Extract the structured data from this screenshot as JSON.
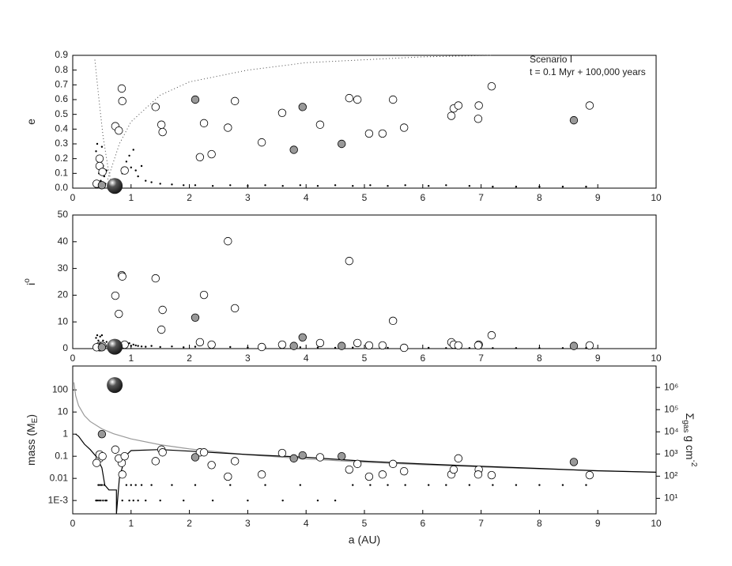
{
  "chart_data": [
    {
      "type": "scatter",
      "ylabel": [
        {
          "text": "e"
        }
      ],
      "annotations": [
        "Scenario I",
        "t = 0.1 Myr + 100,000 years"
      ],
      "xlim": [
        0,
        10
      ],
      "xticks": [
        0,
        1,
        2,
        3,
        4,
        5,
        6,
        7,
        8,
        9,
        10
      ],
      "ylim": [
        0,
        0.9
      ],
      "yticks": [
        {
          "value": 0,
          "label": "0.0"
        },
        0.1,
        0.2,
        0.3,
        0.4,
        0.5,
        0.6,
        0.7,
        0.8,
        0.9
      ],
      "series": [
        {
          "type": "line",
          "style": "dotted",
          "color": "#444444",
          "x": [
            0.38,
            0.45,
            0.52,
            0.6,
            0.68
          ],
          "values": [
            0.87,
            0.6,
            0.35,
            0.15,
            0
          ]
        },
        {
          "type": "line",
          "style": "dotted",
          "color": "#444444",
          "x": [
            0.6,
            0.8,
            1,
            1.5,
            2,
            3,
            4,
            5,
            6,
            7.2
          ],
          "values": [
            0.06,
            0.3,
            0.45,
            0.63,
            0.72,
            0.8,
            0.85,
            0.87,
            0.89,
            0.9
          ]
        },
        {
          "marker": "dot",
          "color": "#000000",
          "x": [
            0.4,
            0.42,
            0.44,
            0.45,
            0.47,
            0.48,
            0.5,
            0.52,
            0.54,
            0.56,
            0.58,
            0.85,
            0.92,
            0.97,
            1.0,
            1.04,
            1.08,
            1.12,
            1.18,
            1.25,
            1.35,
            1.5,
            1.7,
            1.9,
            2.1,
            2.4,
            2.7,
            3.0,
            3.3,
            3.6,
            3.9,
            4.2,
            4.5,
            4.8,
            5.1,
            5.4,
            5.7,
            6.1,
            6.4,
            6.8,
            7.2,
            7.6,
            8.0,
            8.4,
            8.8
          ],
          "values": [
            0.25,
            0.3,
            0.18,
            0.1,
            0.22,
            0.05,
            0.28,
            0.15,
            0.08,
            0.03,
            0.12,
            0.1,
            0.18,
            0.22,
            0.14,
            0.26,
            0.12,
            0.08,
            0.15,
            0.05,
            0.04,
            0.03,
            0.025,
            0.02,
            0.02,
            0.015,
            0.02,
            0.015,
            0.02,
            0.015,
            0.02,
            0.015,
            0.02,
            0.015,
            0.02,
            0.015,
            0.02,
            0.015,
            0.02,
            0.015,
            0.01,
            0.01,
            0.01,
            0.01,
            0.01
          ]
        },
        {
          "marker": "circle",
          "color": "#ffffff",
          "x": [
            0.84,
            0.85,
            0.73,
            0.79,
            0.89,
            1.42,
            1.52,
            1.54,
            2.18,
            2.25,
            2.38,
            2.66,
            2.78,
            3.24,
            3.59,
            4.24,
            4.74,
            4.88,
            5.08,
            5.31,
            5.49,
            5.68,
            6.49,
            6.53,
            6.61,
            6.96,
            6.95,
            7.18,
            8.86,
            0.46,
            0.46,
            0.51,
            0.41
          ],
          "values": [
            0.675,
            0.59,
            0.42,
            0.39,
            0.12,
            0.55,
            0.43,
            0.38,
            0.21,
            0.44,
            0.23,
            0.41,
            0.59,
            0.31,
            0.51,
            0.43,
            0.61,
            0.6,
            0.37,
            0.37,
            0.6,
            0.41,
            0.49,
            0.54,
            0.56,
            0.56,
            0.47,
            0.69,
            0.56,
            0.2,
            0.15,
            0.11,
            0.03
          ]
        },
        {
          "marker": "circle",
          "color": "#999999",
          "x": [
            2.1,
            3.94,
            3.79,
            4.61,
            8.59,
            0.5
          ],
          "values": [
            0.6,
            0.55,
            0.26,
            0.3,
            0.46,
            0.02
          ]
        },
        {
          "marker": "sphere",
          "color": "#555555",
          "x": [
            0.72
          ],
          "values": [
            0.015
          ]
        }
      ]
    },
    {
      "type": "scatter",
      "ylabel": [
        {
          "text": "i"
        },
        {
          "text": "o",
          "shift": "super"
        }
      ],
      "xlim": [
        0,
        10
      ],
      "xticks": [
        0,
        1,
        2,
        3,
        4,
        5,
        6,
        7,
        8,
        9,
        10
      ],
      "ylim": [
        0,
        50
      ],
      "yticks": [
        0,
        10,
        20,
        30,
        40,
        50
      ],
      "series": [
        {
          "marker": "dot",
          "color": "#000000",
          "x": [
            0.4,
            0.42,
            0.44,
            0.45,
            0.47,
            0.48,
            0.5,
            0.52,
            0.54,
            0.56,
            0.58,
            0.85,
            0.92,
            0.97,
            1.0,
            1.04,
            1.08,
            1.12,
            1.18,
            1.25,
            1.35,
            1.5,
            1.7,
            1.9,
            2.1,
            2.4,
            2.7,
            3.0,
            3.3,
            3.6,
            3.9,
            4.2,
            4.5,
            4.8,
            5.1,
            5.4,
            5.7,
            6.1,
            6.4,
            6.8,
            7.2,
            7.6,
            8.0,
            8.4,
            8.8
          ],
          "values": [
            4,
            5,
            3,
            2,
            4.5,
            1,
            5,
            3,
            2,
            1,
            2.5,
            1,
            1.5,
            2,
            1,
            1.5,
            1.2,
            1,
            0.8,
            0.7,
            1,
            0.6,
            0.8,
            0.5,
            0.7,
            0.5,
            0.6,
            0.4,
            0.5,
            0.3,
            0.5,
            0.4,
            0.3,
            0.4,
            0.3,
            0.3,
            0.2,
            0.3,
            0.2,
            0.2,
            0.2,
            0.2,
            0.2,
            0.2,
            0.2
          ]
        },
        {
          "marker": "circle",
          "color": "#ffffff",
          "x": [
            0.84,
            0.85,
            0.73,
            0.79,
            0.89,
            1.42,
            1.52,
            1.54,
            2.18,
            2.25,
            2.38,
            2.66,
            2.78,
            3.24,
            3.59,
            4.24,
            4.74,
            4.88,
            5.08,
            5.31,
            5.49,
            5.68,
            6.49,
            6.53,
            6.61,
            6.96,
            6.95,
            7.18,
            8.86,
            0.46,
            0.46,
            0.51,
            0.41
          ],
          "values": [
            27.5,
            27,
            19.8,
            13,
            1.5,
            26.3,
            7.1,
            14.5,
            2.4,
            20.1,
            1.5,
            40.2,
            15.1,
            0.6,
            1.5,
            2.1,
            32.8,
            2.1,
            1.2,
            1.2,
            10.4,
            0.3,
            2.4,
            1.5,
            1.2,
            1.5,
            1.2,
            5,
            1.2,
            1,
            0.5,
            1,
            0.5
          ]
        },
        {
          "marker": "circle",
          "color": "#999999",
          "x": [
            2.1,
            3.94,
            3.79,
            4.61,
            8.59,
            0.5
          ],
          "values": [
            11.6,
            4.2,
            1.0,
            1.0,
            1.0,
            0.5
          ]
        },
        {
          "marker": "sphere",
          "color": "#555555",
          "x": [
            0.72
          ],
          "values": [
            0.7
          ]
        }
      ]
    },
    {
      "type": "scatter",
      "xlabel": "a (AU)",
      "ylabel": [
        {
          "text": "mass (M"
        },
        {
          "text": "E",
          "shift": "sub"
        },
        {
          "text": ")"
        }
      ],
      "y2label": [
        {
          "text": "Σ"
        },
        {
          "text": "gas",
          "shift": "sub"
        },
        {
          "text": " g cm"
        },
        {
          "text": "-2",
          "shift": "super"
        }
      ],
      "xlim": [
        0,
        10
      ],
      "xticks": [
        0,
        1,
        2,
        3,
        4,
        5,
        6,
        7,
        8,
        9,
        10
      ],
      "ylog": true,
      "ylim": [
        0.00025,
        1200
      ],
      "yticks": [
        {
          "value": 0.001,
          "label": "1E-3"
        },
        0.01,
        0.1,
        1,
        10,
        100
      ],
      "y2log": true,
      "y2lim": [
        2,
        9300000
      ],
      "y2ticks": [
        {
          "value": 10,
          "label": "10¹"
        },
        {
          "value": 100,
          "label": "10²"
        },
        {
          "value": 1000,
          "label": "10³"
        },
        {
          "value": 10000,
          "label": "10⁴"
        },
        {
          "value": 100000,
          "label": "10⁵"
        },
        {
          "value": 1000000,
          "label": "10⁶"
        }
      ],
      "series": [
        {
          "type": "line",
          "axis": "y2",
          "color": "#999999",
          "x": [
            0.02,
            0.05,
            0.1,
            0.2,
            0.3,
            0.5,
            0.7,
            1,
            1.5,
            2,
            3,
            4,
            5,
            6,
            7,
            8,
            9,
            10
          ],
          "values": [
            1697000,
            429300,
            151800,
            53670,
            29210,
            13580,
            8196,
            4800,
            2613,
            1697,
            923.8,
            600,
            429.3,
            326.6,
            259.2,
            212.1,
            177.8,
            151.8
          ]
        },
        {
          "type": "line",
          "color": "#000000",
          "x": [
            0.05,
            0.1,
            0.2,
            0.3,
            0.4,
            0.5,
            0.55,
            0.62,
            0.75,
            0.75,
            0.8,
            0.9,
            1,
            1.5,
            2,
            3,
            4,
            5,
            6,
            7,
            8,
            9,
            10
          ],
          "values": [
            1.0,
            0.8,
            0.35,
            0.2,
            0.1,
            0.03,
            0.005,
            0.003,
            0.003,
            0.00025,
            0.01,
            0.1,
            0.18,
            0.2,
            0.17,
            0.12,
            0.09,
            0.06,
            0.045,
            0.035,
            0.028,
            0.022,
            0.019
          ]
        },
        {
          "marker": "dot",
          "color": "#000000",
          "x": [
            0.4,
            0.42,
            0.44,
            0.45,
            0.47,
            0.48,
            0.5,
            0.52,
            0.54,
            0.56,
            0.58,
            0.85,
            0.92,
            0.97,
            1.0,
            1.04,
            1.08,
            1.12,
            1.18,
            1.25,
            1.35,
            1.5,
            1.7,
            1.9,
            2.1,
            2.4,
            2.7,
            3.0,
            3.3,
            3.6,
            3.9,
            4.2,
            4.5,
            4.8,
            5.1,
            5.4,
            5.7,
            6.1,
            6.4,
            6.8,
            7.2,
            7.6,
            8.0,
            8.4,
            8.8
          ],
          "values": [
            0.001,
            0.001,
            0.005,
            0.001,
            0.005,
            0.001,
            0.005,
            0.001,
            0.005,
            0.001,
            0.001,
            0.001,
            0.005,
            0.001,
            0.005,
            0.001,
            0.005,
            0.001,
            0.005,
            0.001,
            0.005,
            0.001,
            0.005,
            0.001,
            0.005,
            0.001,
            0.005,
            0.001,
            0.005,
            0.001,
            0.005,
            0.001,
            0.001,
            0.005,
            0.005,
            0.005,
            0.005,
            0.005,
            0.005,
            0.005,
            0.005,
            0.005,
            0.005,
            0.005,
            0.005
          ]
        },
        {
          "marker": "circle",
          "color": "#ffffff",
          "x": [
            0.84,
            0.85,
            0.73,
            0.79,
            0.89,
            1.42,
            1.52,
            1.54,
            2.18,
            2.25,
            2.38,
            2.66,
            2.78,
            3.24,
            3.59,
            4.24,
            4.74,
            4.88,
            5.08,
            5.31,
            5.49,
            5.68,
            6.49,
            6.53,
            6.61,
            6.96,
            6.95,
            7.18,
            8.86,
            0.46,
            0.46,
            0.51,
            0.41
          ],
          "values": [
            0.05,
            0.015,
            0.2,
            0.08,
            0.1,
            0.06,
            0.2,
            0.15,
            0.15,
            0.15,
            0.04,
            0.012,
            0.06,
            0.015,
            0.14,
            0.09,
            0.025,
            0.045,
            0.012,
            0.015,
            0.045,
            0.021,
            0.015,
            0.025,
            0.08,
            0.025,
            0.015,
            0.014,
            0.014,
            0.08,
            0.12,
            0.1,
            0.05
          ]
        },
        {
          "marker": "circle",
          "color": "#999999",
          "x": [
            2.1,
            3.94,
            3.79,
            4.61,
            8.59,
            0.5
          ],
          "values": [
            0.09,
            0.11,
            0.08,
            0.1,
            0.055,
            1.0
          ]
        },
        {
          "marker": "sphere",
          "color": "#555555",
          "x": [
            0.72
          ],
          "values": [
            165
          ]
        }
      ]
    }
  ]
}
